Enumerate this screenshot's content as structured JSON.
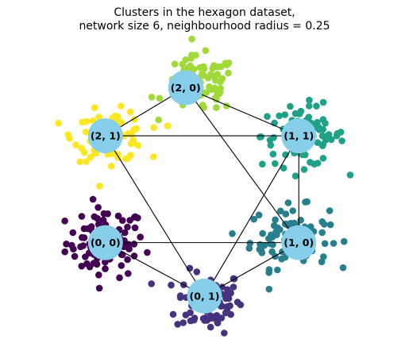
{
  "chart_data": {
    "type": "scatter",
    "title_line1": "Clusters in the hexagon dataset,",
    "title_line2": "network size 6, neighbourhood radius = 0.25",
    "xlim": [
      -2.0,
      2.0
    ],
    "ylim": [
      -1.35,
      1.4
    ],
    "grid": false,
    "axes_visible": false,
    "colors": {
      "node_fill": "#87ceeb",
      "edge": "#000000",
      "clusters": {
        "0,0": "#440154",
        "0,1": "#46327e",
        "1,0": "#277f8e",
        "1,1": "#1fa187",
        "2,0": "#a0da39",
        "2,1": "#fde725"
      }
    },
    "nodes": [
      {
        "label": "(2, 0)",
        "x": -0.2,
        "y": 0.95
      },
      {
        "label": "(2, 1)",
        "x": -1.05,
        "y": 0.5
      },
      {
        "label": "(1, 1)",
        "x": 1.0,
        "y": 0.5
      },
      {
        "label": "(0, 0)",
        "x": -1.05,
        "y": -0.5
      },
      {
        "label": "(1, 0)",
        "x": 1.0,
        "y": -0.5
      },
      {
        "label": "(0, 1)",
        "x": 0.0,
        "y": -1.0
      }
    ],
    "edges": [
      [
        "(2, 0)",
        "(2, 1)"
      ],
      [
        "(2, 0)",
        "(1, 1)"
      ],
      [
        "(2, 0)",
        "(1, 0)"
      ],
      [
        "(2, 1)",
        "(1, 1)"
      ],
      [
        "(2, 1)",
        "(0, 1)"
      ],
      [
        "(1, 1)",
        "(1, 0)"
      ],
      [
        "(1, 1)",
        "(0, 1)"
      ],
      [
        "(0, 0)",
        "(1, 0)"
      ],
      [
        "(0, 0)",
        "(0, 1)"
      ],
      [
        "(1, 0)",
        "(0, 1)"
      ]
    ],
    "clusters": [
      {
        "name": "(0, 0)",
        "center": [
          -1.05,
          -0.5
        ],
        "spread": [
          0.38,
          0.25
        ],
        "points": 90
      },
      {
        "name": "(0, 1)",
        "center": [
          0.05,
          -1.05
        ],
        "spread": [
          0.32,
          0.22
        ],
        "points": 90
      },
      {
        "name": "(1, 0)",
        "center": [
          0.9,
          -0.45
        ],
        "spread": [
          0.38,
          0.22
        ],
        "points": 90
      },
      {
        "name": "(1, 1)",
        "center": [
          1.05,
          0.5
        ],
        "spread": [
          0.4,
          0.22
        ],
        "points": 90
      },
      {
        "name": "(2, 0)",
        "center": [
          -0.05,
          0.98
        ],
        "spread": [
          0.35,
          0.2
        ],
        "points": 90
      },
      {
        "name": "(2, 1)",
        "center": [
          -1.0,
          0.5
        ],
        "spread": [
          0.35,
          0.18
        ],
        "points": 90
      }
    ]
  }
}
